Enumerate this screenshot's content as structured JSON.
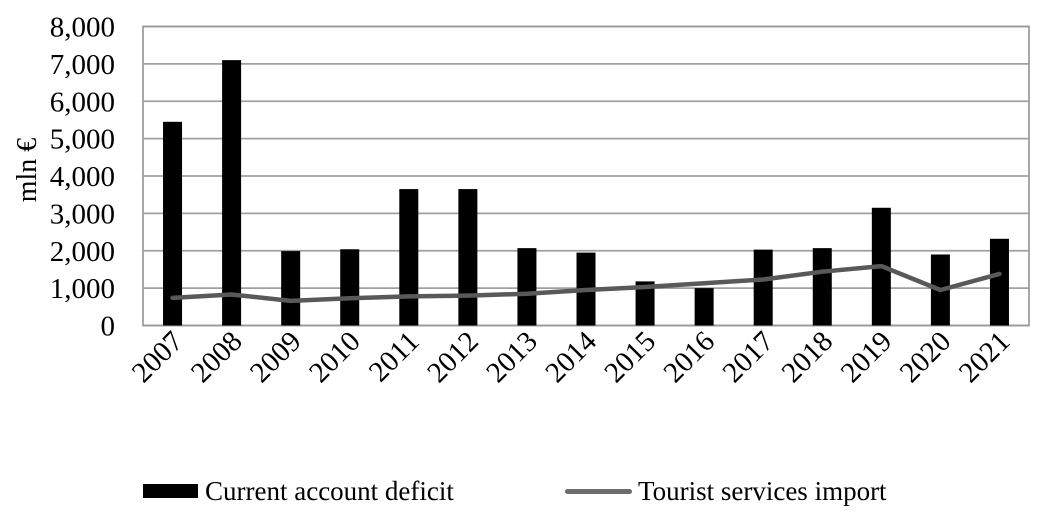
{
  "chart_data": {
    "type": "bar+line",
    "title": "",
    "xlabel": "",
    "ylabel": "mln €",
    "categories": [
      "2007",
      "2008",
      "2009",
      "2010",
      "2011",
      "2012",
      "2013",
      "2014",
      "2015",
      "2016",
      "2017",
      "2018",
      "2019",
      "2020",
      "2021"
    ],
    "series": [
      {
        "name": "Current account deficit",
        "type": "bar",
        "color": "#000000",
        "values": [
          5450,
          7100,
          1990,
          2040,
          3650,
          3650,
          2070,
          1950,
          1180,
          1000,
          2030,
          2070,
          3150,
          1900,
          2320
        ]
      },
      {
        "name": "Tourist services import",
        "type": "line",
        "color": "#595959",
        "values": [
          740,
          830,
          660,
          730,
          780,
          800,
          850,
          950,
          1030,
          1130,
          1230,
          1440,
          1590,
          950,
          1380
        ]
      }
    ],
    "ylim": [
      0,
      8000
    ],
    "y_tick_interval": 1000,
    "y_tick_labels": [
      "0",
      "1,000",
      "2,000",
      "3,000",
      "4,000",
      "5,000",
      "6,000",
      "7,000",
      "8,000"
    ],
    "grid": "horizontal",
    "plot_border": true,
    "legend_position": "bottom",
    "x_label_rotation_deg": -45
  },
  "colors": {
    "bar": "#000000",
    "line": "#595959",
    "gridline": "#a0a0a0",
    "plot_border": "#999999",
    "text": "#000000",
    "background": "#ffffff"
  }
}
